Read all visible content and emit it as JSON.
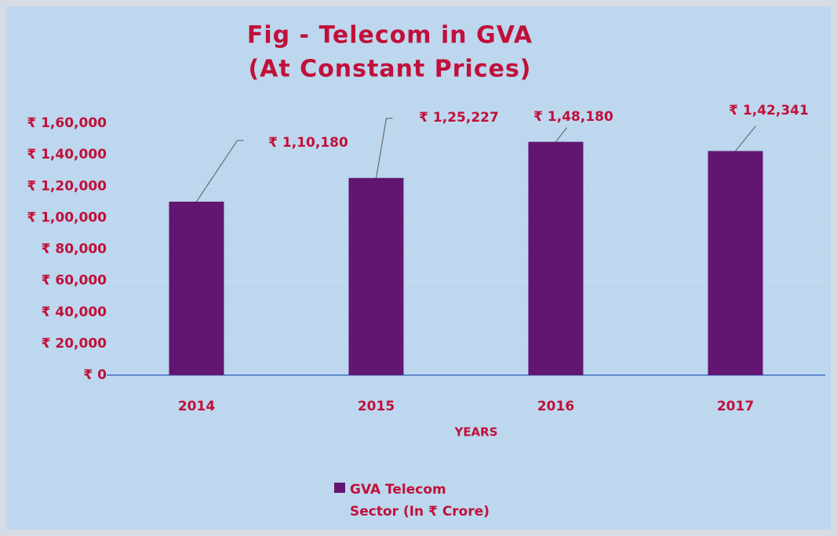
{
  "chart_data": {
    "type": "bar",
    "title": "Fig - Telecom in GVA",
    "subtitle": "(At Constant Prices)",
    "x_label": "YEARS",
    "categories": [
      "2014",
      "2015",
      "2016",
      "2017"
    ],
    "series": [
      {
        "name": "GVA Telecom Sector (In ₹ Crore)",
        "color": "#621672",
        "values": [
          110180,
          125227,
          148180,
          142341
        ],
        "value_labels": [
          "₹ 1,10,180",
          "₹ 1,25,227",
          "₹ 1,48,180",
          "₹ 1,42,341"
        ]
      }
    ],
    "ylim": [
      0,
      160000
    ],
    "yticks": [
      {
        "value": 0,
        "label": "₹ 0"
      },
      {
        "value": 20000,
        "label": "₹ 20,000"
      },
      {
        "value": 40000,
        "label": "₹ 40,000"
      },
      {
        "value": 60000,
        "label": "₹ 60,000"
      },
      {
        "value": 80000,
        "label": "₹ 80,000"
      },
      {
        "value": 100000,
        "label": "₹ 1,00,000"
      },
      {
        "value": 120000,
        "label": "₹ 1,20,000"
      },
      {
        "value": 140000,
        "label": "₹ 1,40,000"
      },
      {
        "value": 160000,
        "label": "₹ 1,60,000"
      }
    ],
    "grid": true,
    "legend": "bottom"
  }
}
